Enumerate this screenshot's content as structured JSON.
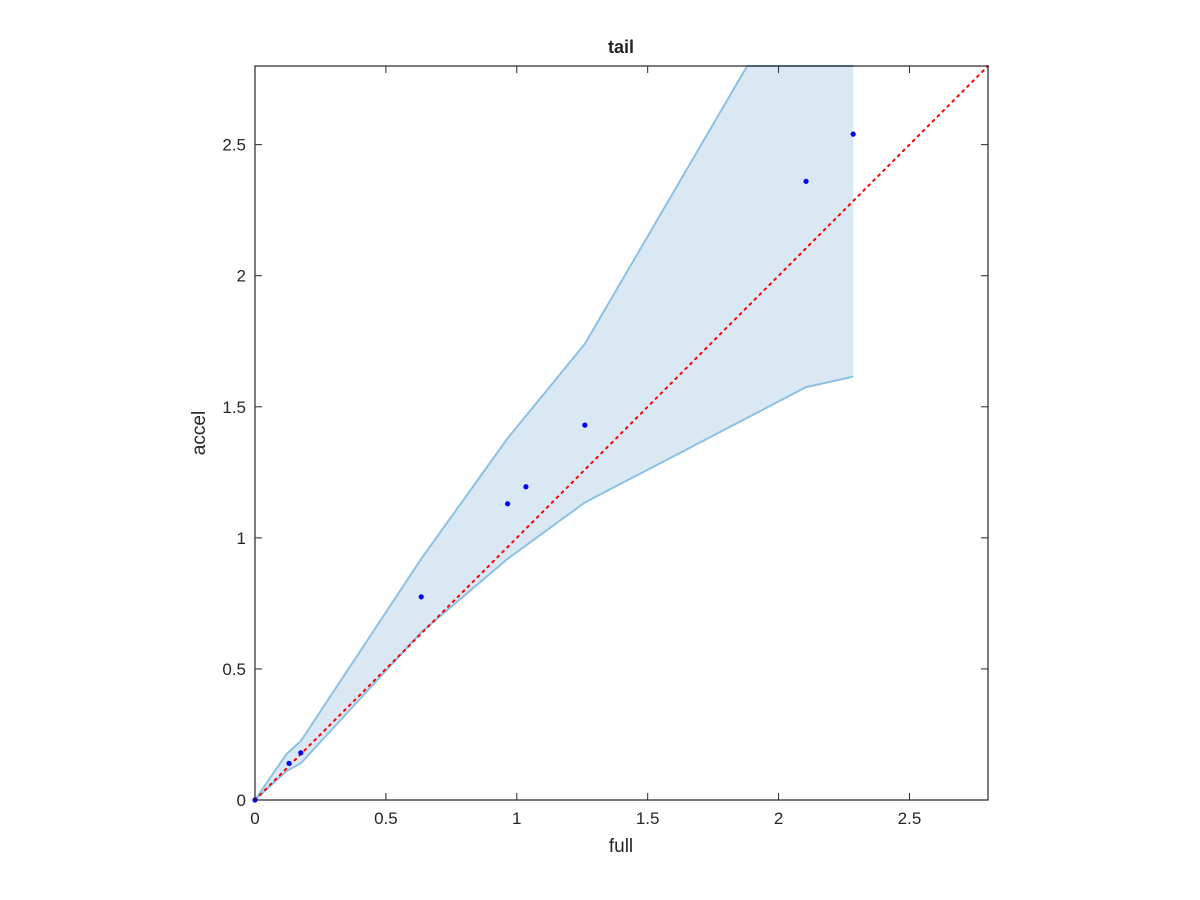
{
  "chart_data": {
    "type": "scatter",
    "title": "tail",
    "xlabel": "full",
    "ylabel": "accel",
    "xlim": [
      0,
      2.8
    ],
    "ylim": [
      0,
      2.8
    ],
    "xticks": [
      0,
      0.5,
      1,
      1.5,
      2,
      2.5
    ],
    "yticks": [
      0,
      0.5,
      1,
      1.5,
      2,
      2.5
    ],
    "xtick_labels": [
      "0",
      "0.5",
      "1",
      "1.5",
      "2",
      "2.5"
    ],
    "ytick_labels": [
      "0",
      "0.5",
      "1",
      "1.5",
      "2",
      "2.5"
    ],
    "grid": false,
    "points": {
      "color": "#0000ff",
      "x": [
        0.0,
        0.13,
        0.175,
        0.635,
        0.965,
        1.035,
        1.26,
        2.105,
        2.285
      ],
      "y": [
        0.0,
        0.14,
        0.18,
        0.775,
        1.13,
        1.195,
        1.43,
        2.36,
        2.54
      ]
    },
    "band": {
      "color": "#dae8f4",
      "edge_color": "#8cc1e3",
      "upper": {
        "x": [
          0.0,
          0.12,
          0.175,
          0.635,
          0.965,
          1.26,
          1.88,
          2.285,
          2.285
        ],
        "y": [
          0.0,
          0.175,
          0.225,
          0.92,
          1.38,
          1.74,
          2.8,
          2.8,
          2.8
        ]
      },
      "lower": {
        "x": [
          0.0,
          0.12,
          0.175,
          0.635,
          0.965,
          1.26,
          2.105,
          2.285
        ],
        "y": [
          0.0,
          0.11,
          0.14,
          0.64,
          0.92,
          1.135,
          1.575,
          1.615
        ]
      }
    },
    "reference_line": {
      "style": "dotted",
      "color": "#ff0000",
      "x": [
        0,
        2.8
      ],
      "y": [
        0,
        2.8
      ]
    }
  }
}
